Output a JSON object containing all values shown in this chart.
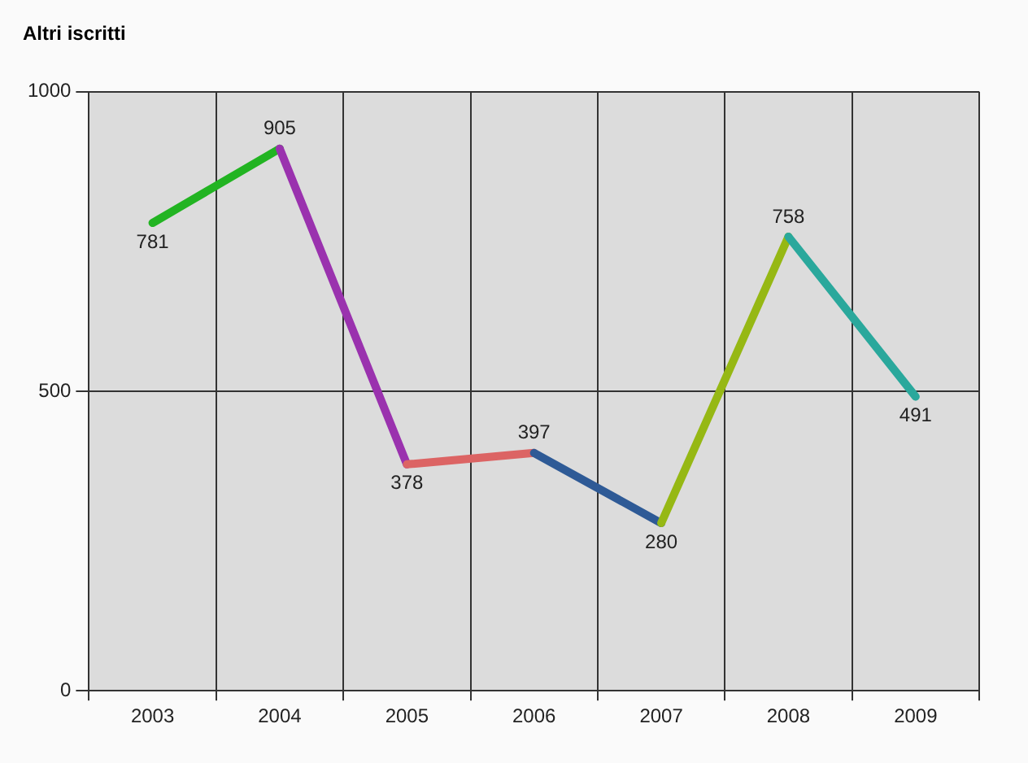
{
  "chart_data": {
    "type": "line",
    "title": "Altri iscritti",
    "categories": [
      "2003",
      "2004",
      "2005",
      "2006",
      "2007",
      "2008",
      "2009"
    ],
    "series": [
      {
        "color": "#22b422",
        "values": [
          781,
          905,
          null,
          null,
          null,
          null,
          null
        ],
        "value_labels": [
          "781",
          "905",
          null,
          null,
          null,
          null,
          null
        ]
      },
      {
        "color": "#9a32ae",
        "values": [
          null,
          905,
          378,
          null,
          null,
          null,
          null
        ],
        "value_labels": [
          null,
          null,
          "378",
          null,
          null,
          null,
          null
        ]
      },
      {
        "color": "#dc6464",
        "values": [
          null,
          null,
          378,
          397,
          null,
          null,
          null
        ],
        "value_labels": [
          null,
          null,
          null,
          "397",
          null,
          null,
          null
        ]
      },
      {
        "color": "#2e5a96",
        "values": [
          null,
          null,
          null,
          397,
          280,
          null,
          null
        ],
        "value_labels": [
          null,
          null,
          null,
          null,
          "280",
          null,
          null
        ]
      },
      {
        "color": "#96b814",
        "values": [
          null,
          null,
          null,
          null,
          280,
          758,
          null
        ],
        "value_labels": [
          null,
          null,
          null,
          null,
          null,
          "758",
          null
        ]
      },
      {
        "color": "#2aa89c",
        "values": [
          null,
          null,
          null,
          null,
          null,
          758,
          491
        ],
        "value_labels": [
          null,
          null,
          null,
          null,
          null,
          null,
          "491"
        ]
      }
    ],
    "ylim": [
      0,
      1000
    ],
    "yticks": [
      0,
      500,
      1000
    ],
    "grid": true
  }
}
